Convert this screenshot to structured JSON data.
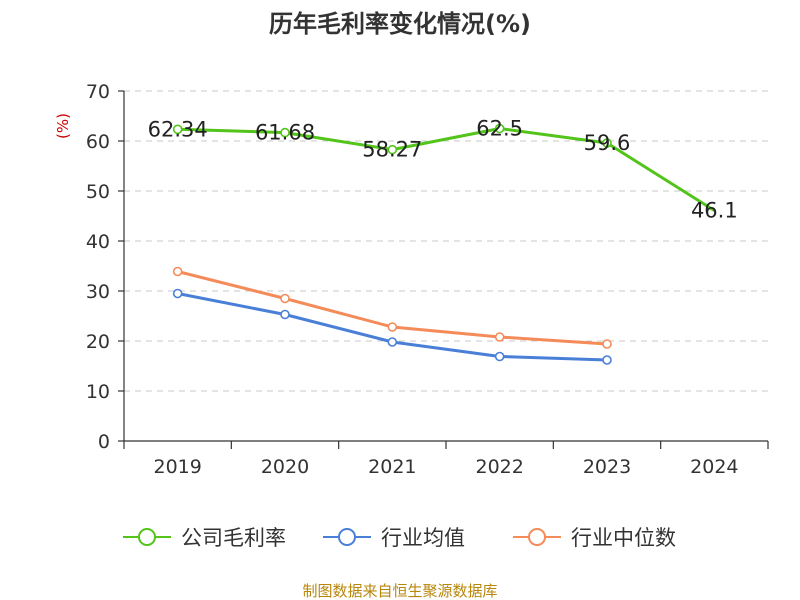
{
  "chart_data": {
    "type": "line",
    "title": "历年毛利率变化情况(%)",
    "unit_label": "(%)",
    "categories": [
      "2019",
      "2020",
      "2021",
      "2022",
      "2023",
      "2024"
    ],
    "ylim": [
      0,
      70
    ],
    "yticks": [
      0,
      10,
      20,
      30,
      40,
      50,
      60,
      70
    ],
    "ytick_labels": [
      "0",
      "10",
      "20",
      "30",
      "40",
      "50",
      "60",
      "70"
    ],
    "grid": true,
    "legend_position": "bottom",
    "series": [
      {
        "name": "公司毛利率",
        "color": "#52c41a",
        "values": [
          62.34,
          61.68,
          58.27,
          62.5,
          59.6,
          46.1
        ],
        "labels": [
          "62.34",
          "61.68",
          "58.27",
          "62.5",
          "59.6",
          "46.1"
        ],
        "markers": [
          true,
          true,
          true,
          true,
          true,
          false
        ]
      },
      {
        "name": "行业均值",
        "color": "#4a7fd8",
        "values": [
          29.5,
          25.3,
          19.8,
          16.9,
          16.2,
          null
        ],
        "labels": null,
        "markers": [
          true,
          true,
          true,
          true,
          true,
          false
        ]
      },
      {
        "name": "行业中位数",
        "color": "#f58b59",
        "values": [
          33.9,
          28.5,
          22.8,
          20.8,
          19.4,
          null
        ],
        "labels": null,
        "markers": [
          true,
          true,
          true,
          true,
          true,
          false
        ]
      }
    ],
    "source": "制图数据来自恒生聚源数据库"
  }
}
